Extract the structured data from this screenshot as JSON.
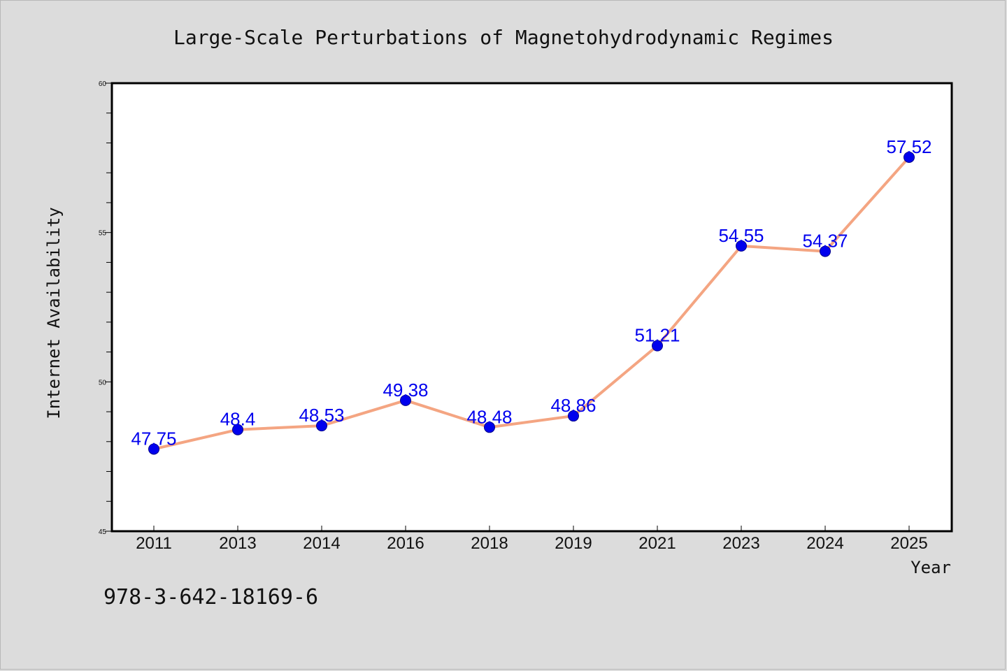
{
  "chart_data": {
    "type": "line",
    "title": "Large-Scale Perturbations of Magnetohydrodynamic Regimes",
    "xlabel": "Year",
    "ylabel": "Internet Availability",
    "categories": [
      "2011",
      "2013",
      "2014",
      "2016",
      "2018",
      "2019",
      "2021",
      "2023",
      "2024",
      "2025"
    ],
    "series": [
      {
        "values": [
          47.75,
          48.4,
          48.53,
          49.38,
          48.48,
          48.86,
          51.21,
          54.55,
          54.37,
          57.52
        ],
        "labels": [
          "47.75",
          "48.4",
          "48.53",
          "49.38",
          "48.48",
          "48.86",
          "51.21",
          "54.55",
          "54.37",
          "57.52"
        ],
        "line_color": "#f4a582",
        "marker_color": "#0000ee"
      }
    ],
    "ylim": [
      45,
      60
    ],
    "yticks": [
      "45",
      "50",
      "55",
      "60"
    ],
    "grid": false,
    "legend": "none"
  },
  "footer": {
    "code": "978-3-642-18169-6"
  }
}
